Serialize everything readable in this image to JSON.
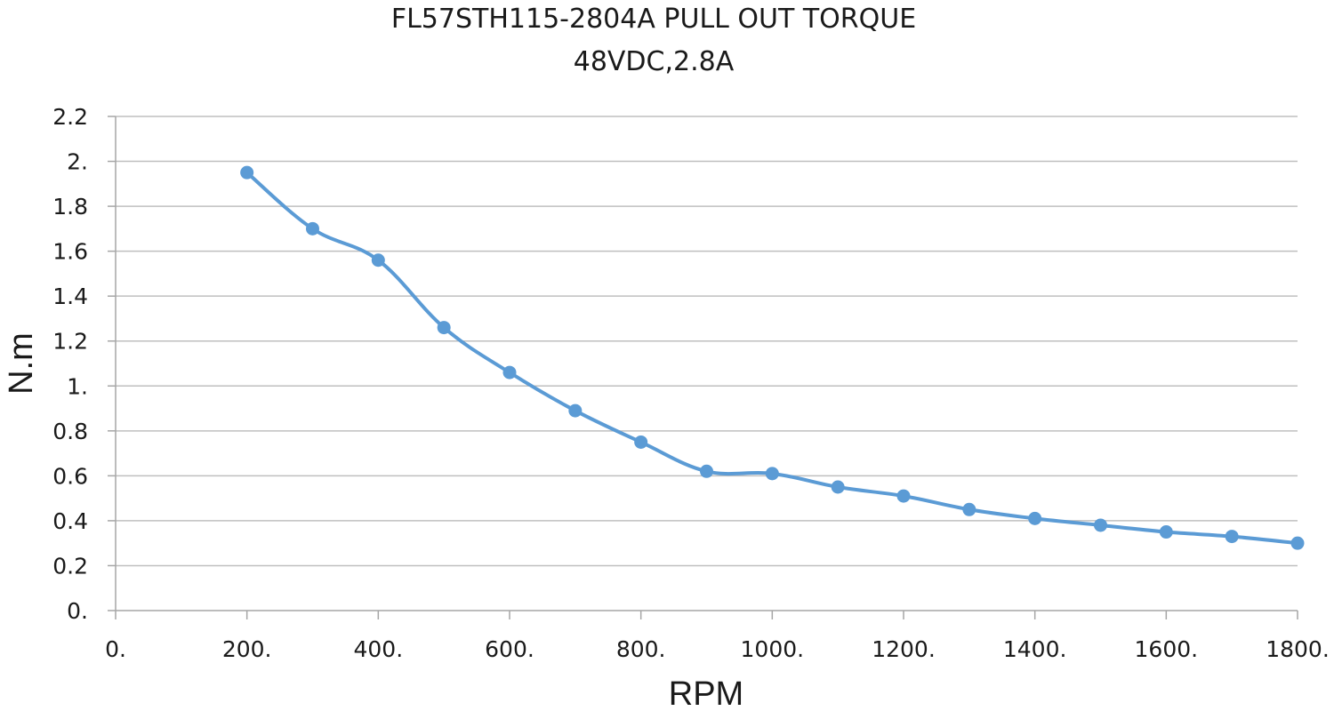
{
  "chart_data": {
    "type": "line",
    "title": [
      "FL57STH115-2804A PULL  OUT TORQUE",
      "48VDC,2.8A"
    ],
    "xlabel": "RPM",
    "ylabel": "N.m",
    "xlim": [
      0,
      1800
    ],
    "ylim": [
      0,
      2.2
    ],
    "x_ticks": [
      0,
      200,
      400,
      600,
      800,
      1000,
      1200,
      1400,
      1600,
      1800
    ],
    "x_tick_labels": [
      "0.",
      "200.",
      "400.",
      "600.",
      "800.",
      "1000.",
      "1200.",
      "1400.",
      "1600.",
      "1800."
    ],
    "y_ticks": [
      0,
      0.2,
      0.4,
      0.6,
      0.8,
      1,
      1.2,
      1.4,
      1.6,
      1.8,
      2,
      2.2
    ],
    "y_tick_labels": [
      "0.",
      "0.2",
      "0.4",
      "0.6",
      "0.8",
      "1.",
      "1.2",
      "1.4",
      "1.6",
      "1.8",
      "2.",
      "2.2"
    ],
    "grid": {
      "horizontal": true,
      "vertical": false
    },
    "legend": "none",
    "series": [
      {
        "color": "#5b9bd5",
        "marker": "circle",
        "smooth": true,
        "x": [
          200,
          300,
          400,
          500,
          600,
          700,
          800,
          900,
          1000,
          1100,
          1200,
          1300,
          1400,
          1500,
          1600,
          1700,
          1800
        ],
        "y": [
          1.95,
          1.7,
          1.56,
          1.26,
          1.06,
          0.89,
          0.75,
          0.62,
          0.61,
          0.55,
          0.51,
          0.45,
          0.41,
          0.38,
          0.35,
          0.33,
          0.3
        ]
      }
    ]
  }
}
